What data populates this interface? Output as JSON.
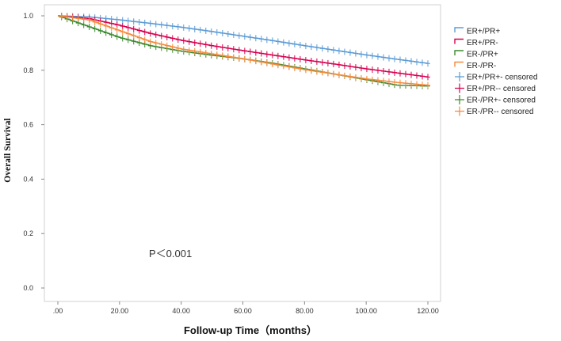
{
  "chart_data": {
    "type": "line",
    "title": "",
    "xlabel": "Follow-up Time（months）",
    "ylabel": "Overall Survival",
    "xlim": [
      0,
      120
    ],
    "ylim": [
      0,
      1.0
    ],
    "x_ticks": [
      0,
      20,
      40,
      60,
      80,
      100,
      120
    ],
    "x_tick_labels": [
      ".00",
      "20.00",
      "40.00",
      "60.00",
      "80.00",
      "100.00",
      "120.00"
    ],
    "y_ticks": [
      0.0,
      0.2,
      0.4,
      0.6,
      0.8,
      1.0
    ],
    "y_tick_labels": [
      "0.0",
      "0.2",
      "0.4",
      "0.6",
      "0.8",
      "1.0"
    ],
    "grid": false,
    "legend_position": "top-right",
    "annotation": "P＜0.001",
    "x": [
      0,
      10,
      20,
      30,
      40,
      50,
      60,
      70,
      80,
      90,
      100,
      110,
      120
    ],
    "series": [
      {
        "name": "ER+/PR+",
        "color": "#5b9bd5",
        "values": [
          1.0,
          0.996,
          0.985,
          0.972,
          0.958,
          0.942,
          0.925,
          0.908,
          0.89,
          0.873,
          0.856,
          0.84,
          0.825
        ]
      },
      {
        "name": "ER+/PR-",
        "color": "#d6004f",
        "values": [
          1.0,
          0.99,
          0.965,
          0.935,
          0.91,
          0.89,
          0.872,
          0.855,
          0.838,
          0.822,
          0.805,
          0.79,
          0.775
        ]
      },
      {
        "name": "ER-/PR+",
        "color": "#3a8a2e",
        "values": [
          1.0,
          0.96,
          0.92,
          0.89,
          0.87,
          0.855,
          0.842,
          0.825,
          0.805,
          0.785,
          0.765,
          0.745,
          0.742
        ]
      },
      {
        "name": "ER-/PR-",
        "color": "#f58a3c",
        "values": [
          1.0,
          0.985,
          0.945,
          0.905,
          0.878,
          0.86,
          0.842,
          0.822,
          0.802,
          0.785,
          0.768,
          0.755,
          0.745
        ]
      }
    ],
    "legend_entries": [
      {
        "label": "ER+/PR+",
        "color": "#5b9bd5",
        "kind": "step"
      },
      {
        "label": "ER+/PR-",
        "color": "#d6004f",
        "kind": "step"
      },
      {
        "label": "ER-/PR+",
        "color": "#3a8a2e",
        "kind": "step"
      },
      {
        "label": "ER-/PR-",
        "color": "#f58a3c",
        "kind": "step"
      },
      {
        "label": "ER+/PR+- censored",
        "color": "#5b9bd5",
        "kind": "cross"
      },
      {
        "label": "ER+/PR-- censored",
        "color": "#d6004f",
        "kind": "cross"
      },
      {
        "label": "ER-/PR+- censored",
        "color": "#3a8a2e",
        "kind": "cross"
      },
      {
        "label": "ER-/PR-- censored",
        "color": "#f58a3c",
        "kind": "cross"
      }
    ]
  }
}
